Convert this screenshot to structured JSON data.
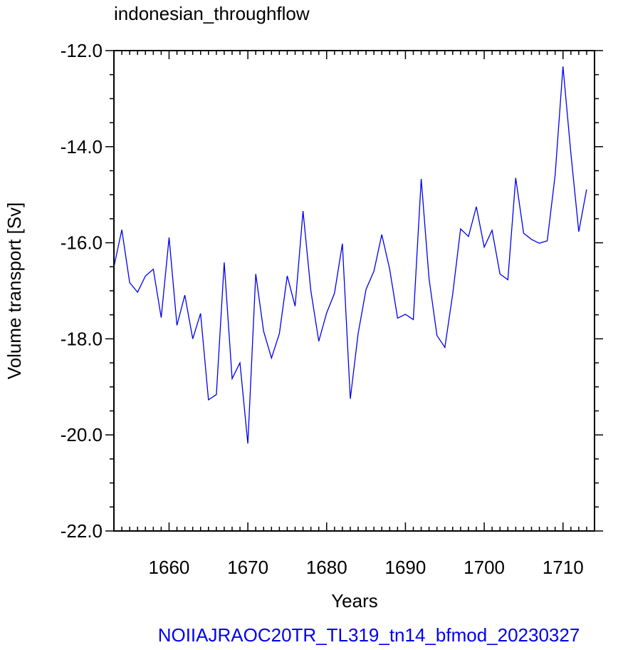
{
  "chart_data": {
    "type": "line",
    "title": "indonesian_throughflow",
    "xlabel": "Years",
    "ylabel": "Volume transport [Sv]",
    "footer": "NOIIAJRAOC20TR_TL319_tn14_bfmod_20230327",
    "xlim": [
      1653,
      1714
    ],
    "ylim": [
      -22.0,
      -12.0
    ],
    "x_ticks": [
      1660,
      1670,
      1680,
      1690,
      1700,
      1710
    ],
    "y_ticks": [
      -22.0,
      -20.0,
      -18.0,
      -16.0,
      -14.0,
      -12.0
    ],
    "grid": false,
    "colors": {
      "line": "#0000ee",
      "footer": "#0000ee",
      "axes": "#000000"
    },
    "series": [
      {
        "x": [
          1653,
          1654,
          1655,
          1656,
          1657,
          1658,
          1659,
          1660,
          1661,
          1662,
          1663,
          1664,
          1665,
          1666,
          1667,
          1668,
          1669,
          1670,
          1671,
          1672,
          1673,
          1674,
          1675,
          1676,
          1677,
          1678,
          1679,
          1680,
          1681,
          1682,
          1683,
          1684,
          1685,
          1686,
          1687,
          1688,
          1689,
          1690,
          1691,
          1692,
          1693,
          1694,
          1695,
          1696,
          1697,
          1698,
          1699,
          1700,
          1701,
          1702,
          1703,
          1704,
          1705,
          1706,
          1707,
          1708,
          1709,
          1710,
          1711,
          1712,
          1713
        ],
        "values": [
          -16.5,
          -15.73,
          -16.83,
          -17.03,
          -16.69,
          -16.55,
          -17.56,
          -15.89,
          -17.72,
          -17.09,
          -18.0,
          -17.47,
          -19.27,
          -19.16,
          -16.41,
          -18.83,
          -18.5,
          -20.18,
          -16.65,
          -17.84,
          -18.4,
          -17.89,
          -16.69,
          -17.32,
          -15.34,
          -17.0,
          -18.05,
          -17.46,
          -17.05,
          -16.02,
          -19.25,
          -17.89,
          -16.97,
          -16.59,
          -15.83,
          -16.55,
          -17.57,
          -17.49,
          -17.6,
          -14.67,
          -16.75,
          -17.93,
          -18.18,
          -17.07,
          -15.71,
          -15.87,
          -15.25,
          -16.09,
          -15.74,
          -16.65,
          -16.77,
          -14.65,
          -15.8,
          -15.93,
          -16.01,
          -15.96,
          -14.59,
          -12.33,
          -14.14,
          -15.77,
          -14.89
        ]
      }
    ]
  }
}
